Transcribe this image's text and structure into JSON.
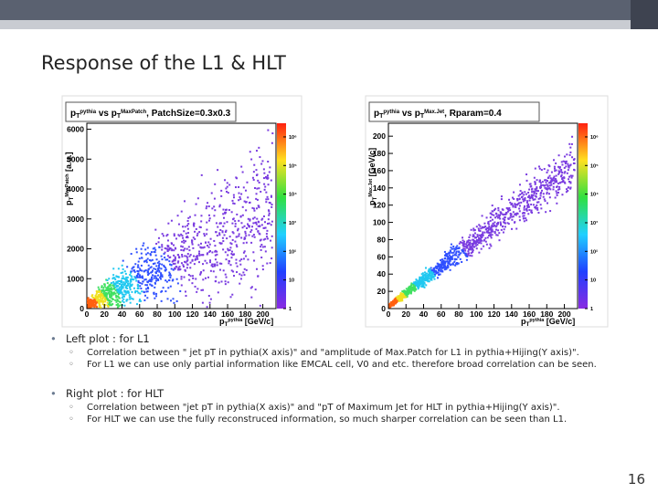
{
  "slide": {
    "title": "Response of the L1 & HLT",
    "page_number": "16"
  },
  "chart_data": [
    {
      "type": "heatmap",
      "title_parts": [
        "p",
        "T",
        "pythia",
        " vs p",
        "T",
        "MaxPatch",
        ", PatchSize=0.3x0.3"
      ],
      "x_label_parts": [
        "p",
        "T",
        "pythia",
        " [GeV/c]"
      ],
      "y_label_parts": [
        "p",
        "T",
        "MaxPatch",
        " [a.u.]"
      ],
      "xlim": [
        0,
        215
      ],
      "xticks": [
        0,
        20,
        40,
        60,
        80,
        100,
        120,
        140,
        160,
        180,
        200
      ],
      "ylim": [
        0,
        6200
      ],
      "yticks": [
        0,
        1000,
        2000,
        3000,
        4000,
        5000,
        6000
      ],
      "zlim": [
        1,
        3000000
      ],
      "z_log": true,
      "zticks": [
        {
          "value": 1,
          "label": "1"
        },
        {
          "value": 10,
          "label": "10"
        },
        {
          "value": 100,
          "label": "10²"
        },
        {
          "value": 1000,
          "label": "10³"
        },
        {
          "value": 10000,
          "label": "10⁴"
        },
        {
          "value": 100000,
          "label": "10⁵"
        },
        {
          "value": 1000000,
          "label": "10⁶"
        }
      ]
    },
    {
      "type": "heatmap",
      "title_parts": [
        "p",
        "T",
        "pythia",
        " vs p",
        "T",
        "Max.Jet",
        ", Rparam=0.4"
      ],
      "x_label_parts": [
        "p",
        "T",
        "pythia",
        " [GeV/c]"
      ],
      "y_label_parts": [
        "p",
        "T",
        "Max.Jet",
        " [GeV/c]"
      ],
      "xlim": [
        0,
        215
      ],
      "xticks": [
        0,
        20,
        40,
        60,
        80,
        100,
        120,
        140,
        160,
        180,
        200
      ],
      "ylim": [
        0,
        215
      ],
      "yticks": [
        0,
        20,
        40,
        60,
        80,
        100,
        120,
        140,
        160,
        180,
        200
      ],
      "zlim": [
        1,
        3000000
      ],
      "z_log": true,
      "zticks": [
        {
          "value": 1,
          "label": "1"
        },
        {
          "value": 10,
          "label": "10"
        },
        {
          "value": 100,
          "label": "10²"
        },
        {
          "value": 1000,
          "label": "10³"
        },
        {
          "value": 10000,
          "label": "10⁴"
        },
        {
          "value": 100000,
          "label": "10⁵"
        },
        {
          "value": 1000000,
          "label": "10⁶"
        }
      ]
    }
  ],
  "bullets": [
    {
      "text": "Left plot : for L1",
      "items": [
        "Correlation between \" jet pT in pythia(X axis)\" and \"amplitude of Max.Patch for L1 in pythia+Hijing(Y axis)\".",
        "For L1 we can use only partial information like EMCAL cell,  V0 and etc. therefore broad correlation can be seen."
      ]
    },
    {
      "text": "Right plot : for HLT",
      "items": [
        "Correlation between \"jet pT in pythia(X axis)\" and \"pT of Maximum Jet for HLT in pythia+Hijing(Y axis)\".",
        "For HLT we can use the fully reconstruced information, so much sharper correlation can be seen than L1."
      ]
    }
  ]
}
